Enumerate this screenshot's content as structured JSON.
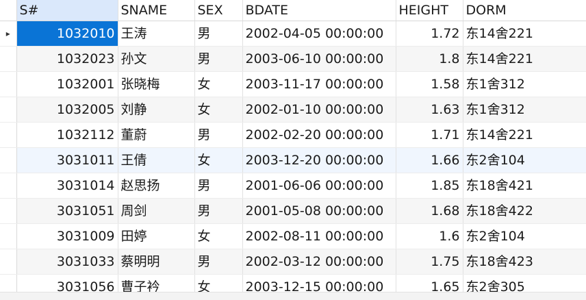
{
  "columns": [
    "S#",
    "SNAME",
    "SEX",
    "BDATE",
    "HEIGHT",
    "DORM"
  ],
  "current_row_marker": "▸",
  "rows": [
    {
      "sid": "1032010",
      "sname": "王涛",
      "sex": "男",
      "bdate": "2002-04-05 00:00:00",
      "height": "1.72",
      "dorm": "东14舍221"
    },
    {
      "sid": "1032023",
      "sname": "孙文",
      "sex": "男",
      "bdate": "2003-06-10 00:00:00",
      "height": "1.8",
      "dorm": "东14舍221"
    },
    {
      "sid": "1032001",
      "sname": "张晓梅",
      "sex": "女",
      "bdate": "2003-11-17 00:00:00",
      "height": "1.58",
      "dorm": "东1舍312"
    },
    {
      "sid": "1032005",
      "sname": "刘静",
      "sex": "女",
      "bdate": "2002-01-10 00:00:00",
      "height": "1.63",
      "dorm": "东1舍312"
    },
    {
      "sid": "1032112",
      "sname": "董蔚",
      "sex": "男",
      "bdate": "2002-02-20 00:00:00",
      "height": "1.71",
      "dorm": "东14舍221"
    },
    {
      "sid": "3031011",
      "sname": "王倩",
      "sex": "女",
      "bdate": "2003-12-20 00:00:00",
      "height": "1.66",
      "dorm": "东2舍104"
    },
    {
      "sid": "3031014",
      "sname": "赵思扬",
      "sex": "男",
      "bdate": "2001-06-06 00:00:00",
      "height": "1.85",
      "dorm": "东18舍421"
    },
    {
      "sid": "3031051",
      "sname": "周剑",
      "sex": "男",
      "bdate": "2001-05-08 00:00:00",
      "height": "1.68",
      "dorm": "东18舍422"
    },
    {
      "sid": "3031009",
      "sname": "田婷",
      "sex": "女",
      "bdate": "2002-08-11 00:00:00",
      "height": "1.6",
      "dorm": "东2舍104"
    },
    {
      "sid": "3031033",
      "sname": "蔡明明",
      "sex": "男",
      "bdate": "2002-03-12 00:00:00",
      "height": "1.75",
      "dorm": "东18舍423"
    },
    {
      "sid": "3031056",
      "sname": "曹子衿",
      "sex": "女",
      "bdate": "2003-12-15 00:00:00",
      "height": "1.65",
      "dorm": "东2舍305"
    }
  ],
  "colors": {
    "selected_cell": "#0a74d6",
    "sorted_header": "#dae8fb"
  }
}
